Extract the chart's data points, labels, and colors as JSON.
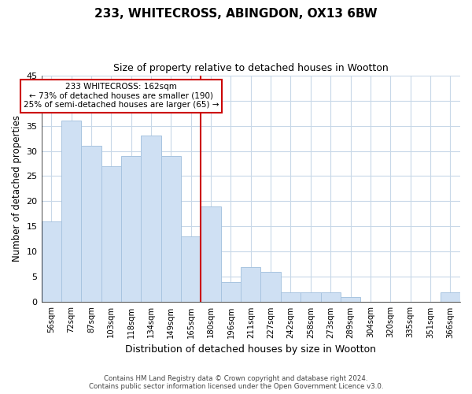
{
  "title": "233, WHITECROSS, ABINGDON, OX13 6BW",
  "subtitle": "Size of property relative to detached houses in Wootton",
  "xlabel": "Distribution of detached houses by size in Wootton",
  "ylabel": "Number of detached properties",
  "bar_labels": [
    "56sqm",
    "72sqm",
    "87sqm",
    "103sqm",
    "118sqm",
    "134sqm",
    "149sqm",
    "165sqm",
    "180sqm",
    "196sqm",
    "211sqm",
    "227sqm",
    "242sqm",
    "258sqm",
    "273sqm",
    "289sqm",
    "304sqm",
    "320sqm",
    "335sqm",
    "351sqm",
    "366sqm"
  ],
  "bar_values": [
    16,
    36,
    31,
    27,
    29,
    33,
    29,
    13,
    19,
    4,
    7,
    6,
    2,
    2,
    2,
    1,
    0,
    0,
    0,
    0,
    2
  ],
  "bar_color": "#cfe0f3",
  "bar_edge_color": "#a8c4e0",
  "vline_x": 7.5,
  "vline_color": "#cc0000",
  "annotation_lines": [
    "233 WHITECROSS: 162sqm",
    "← 73% of detached houses are smaller (190)",
    "25% of semi-detached houses are larger (65) →"
  ],
  "annotation_box_edge": "#cc0000",
  "ylim": [
    0,
    45
  ],
  "yticks": [
    0,
    5,
    10,
    15,
    20,
    25,
    30,
    35,
    40,
    45
  ],
  "footer_lines": [
    "Contains HM Land Registry data © Crown copyright and database right 2024.",
    "Contains public sector information licensed under the Open Government Licence v3.0."
  ],
  "background_color": "#ffffff",
  "grid_color": "#c8d8e8"
}
